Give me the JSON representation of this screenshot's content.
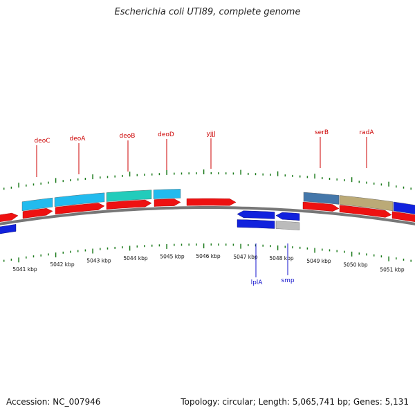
{
  "title": "Escherichia coli UTI89, complete genome",
  "footer": {
    "accession": "Accession: NC_007946",
    "summary": "Topology: circular; Length: 5,065,741 bp; Genes: 5,131"
  },
  "colors": {
    "forward_gene": "#ee1111",
    "reverse_gene": "#1122dd",
    "label_forward": "#cc0000",
    "label_reverse": "#1111cc",
    "tick": "#1a7a1a",
    "backbone": "#777777",
    "cog_cyan": "#22bbee",
    "cog_teal": "#22ccbb",
    "cog_steel": "#4477aa",
    "cog_khaki": "#bbaa77",
    "cog_grey": "#bbbbbb",
    "cog_blue": "#1122dd"
  },
  "axis_labels": [
    "5041 kbp",
    "5042 kbp",
    "5043 kbp",
    "5044 kbp",
    "5045 kbp",
    "5046 kbp",
    "5047 kbp",
    "5048 kbp",
    "5049 kbp",
    "5050 kbp",
    "5051 kbp"
  ],
  "gene_labels": {
    "forward": [
      "deoC",
      "deoA",
      "deoB",
      "deoD",
      "yjjJ",
      "serB",
      "radA"
    ],
    "reverse": [
      "lplA",
      "smp"
    ]
  }
}
